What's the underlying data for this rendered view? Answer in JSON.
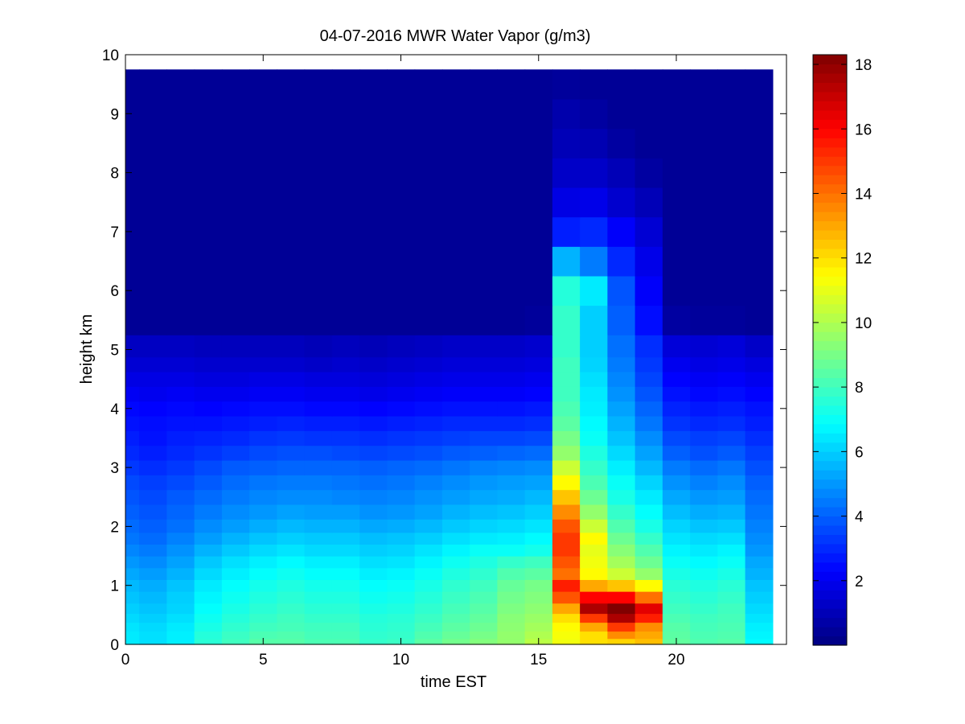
{
  "chart_data": {
    "type": "heatmap",
    "title": "04-07-2016 MWR Water Vapor (g/m3)",
    "xlabel": "time EST",
    "ylabel": "height km",
    "xlim": [
      0,
      24
    ],
    "ylim": [
      0,
      10
    ],
    "xticks": [
      0,
      5,
      10,
      15,
      20
    ],
    "yticks": [
      0,
      1,
      2,
      3,
      4,
      5,
      6,
      7,
      8,
      9,
      10
    ],
    "colorbar": {
      "colormap": "jet",
      "range": [
        0,
        18.3
      ],
      "ticks": [
        2,
        4,
        6,
        8,
        10,
        12,
        14,
        16,
        18
      ]
    },
    "x_edges": [
      0,
      1,
      2,
      3,
      4,
      5,
      6,
      7,
      8,
      9,
      10,
      11,
      12,
      13,
      14,
      15,
      16,
      17,
      18,
      19,
      20,
      21,
      22,
      23
    ],
    "heights_km": [
      0.05,
      0.15,
      0.3,
      0.45,
      0.6,
      0.8,
      1.0,
      1.2,
      1.4,
      1.6,
      1.8,
      2.0,
      2.25,
      2.5,
      2.75,
      3.0,
      3.25,
      3.5,
      3.75,
      4.0,
      4.25,
      4.5,
      4.75,
      5.0,
      5.5,
      6.0,
      6.5,
      7.0,
      7.5,
      8.0,
      8.5,
      9.0,
      9.5
    ],
    "y_top_km": 9.75,
    "values": [
      [
        6.5,
        6.3,
        6.6,
        7.6,
        8.0,
        8.4,
        8.4,
        8.2,
        8.2,
        7.8,
        7.9,
        8.5,
        8.9,
        9.2,
        9.5,
        10.2,
        11.2,
        12.0,
        12.2,
        12.6,
        8.6,
        8.3,
        8.4,
        6.8
      ],
      [
        6.5,
        6.3,
        6.6,
        7.5,
        7.9,
        8.2,
        8.3,
        8.1,
        8.1,
        7.7,
        7.8,
        8.3,
        8.7,
        9.0,
        9.5,
        10.0,
        11.3,
        12.0,
        13.5,
        13.0,
        8.5,
        8.2,
        8.3,
        6.7
      ],
      [
        6.4,
        6.2,
        6.5,
        7.3,
        7.7,
        8.0,
        8.1,
        8.0,
        8.0,
        7.6,
        7.7,
        8.1,
        8.5,
        8.8,
        9.4,
        9.8,
        11.5,
        13.0,
        15.0,
        13.5,
        8.4,
        8.1,
        8.2,
        6.6
      ],
      [
        6.2,
        6.0,
        6.3,
        7.1,
        7.5,
        7.8,
        8.0,
        7.8,
        7.8,
        7.5,
        7.6,
        7.9,
        8.3,
        8.6,
        9.3,
        9.6,
        12.0,
        15.0,
        17.5,
        15.5,
        8.2,
        8.0,
        8.1,
        6.4
      ],
      [
        6.0,
        5.8,
        6.1,
        6.9,
        7.3,
        7.6,
        7.8,
        7.6,
        7.6,
        7.3,
        7.4,
        7.7,
        8.1,
        8.4,
        9.1,
        9.4,
        13.0,
        17.5,
        18.3,
        16.5,
        8.0,
        7.8,
        8.0,
        6.2
      ],
      [
        5.8,
        5.6,
        6.0,
        6.7,
        7.1,
        7.4,
        7.6,
        7.4,
        7.4,
        7.1,
        7.2,
        7.5,
        7.9,
        8.2,
        8.9,
        9.2,
        14.5,
        16.0,
        16.0,
        14.0,
        7.8,
        7.6,
        7.8,
        6.0
      ],
      [
        5.6,
        5.4,
        5.8,
        6.5,
        6.9,
        7.2,
        7.4,
        7.2,
        7.2,
        6.9,
        7.0,
        7.3,
        7.7,
        8.0,
        8.7,
        9.0,
        15.5,
        13.0,
        12.5,
        11.5,
        7.6,
        7.4,
        7.6,
        5.8
      ],
      [
        5.3,
        5.1,
        5.5,
        6.2,
        6.6,
        6.9,
        7.1,
        6.9,
        6.9,
        6.6,
        6.7,
        7.0,
        7.4,
        7.7,
        8.3,
        8.5,
        14.0,
        11.5,
        10.5,
        9.5,
        7.3,
        7.1,
        7.3,
        5.5
      ],
      [
        5.0,
        4.8,
        5.2,
        5.9,
        6.3,
        6.6,
        6.8,
        6.6,
        6.6,
        6.3,
        6.4,
        6.7,
        7.1,
        7.4,
        7.8,
        8.0,
        14.5,
        11.2,
        9.8,
        8.8,
        7.0,
        6.8,
        7.0,
        5.3
      ],
      [
        4.7,
        4.5,
        4.9,
        5.5,
        5.9,
        6.2,
        6.4,
        6.2,
        6.2,
        6.0,
        6.1,
        6.4,
        6.7,
        7.0,
        7.0,
        7.2,
        15.0,
        11.0,
        9.3,
        8.3,
        6.7,
        6.5,
        6.7,
        5.0
      ],
      [
        4.4,
        4.2,
        4.6,
        5.1,
        5.5,
        5.8,
        6.0,
        5.9,
        5.9,
        5.7,
        5.8,
        6.0,
        6.3,
        6.5,
        6.6,
        6.8,
        15.0,
        11.5,
        8.8,
        7.8,
        6.4,
        6.2,
        6.3,
        4.8
      ],
      [
        4.2,
        4.0,
        4.3,
        4.8,
        5.1,
        5.4,
        5.6,
        5.5,
        5.5,
        5.3,
        5.4,
        5.6,
        5.9,
        6.1,
        6.2,
        6.4,
        14.5,
        10.5,
        8.3,
        7.3,
        6.1,
        5.8,
        5.9,
        4.6
      ],
      [
        4.0,
        3.8,
        4.1,
        4.5,
        4.8,
        5.0,
        5.2,
        5.1,
        5.1,
        4.9,
        5.0,
        5.2,
        5.5,
        5.7,
        5.8,
        6.0,
        13.5,
        9.5,
        7.8,
        6.9,
        5.7,
        5.4,
        5.5,
        4.4
      ],
      [
        3.8,
        3.6,
        3.9,
        4.2,
        4.5,
        4.7,
        4.8,
        4.8,
        4.7,
        4.6,
        4.7,
        4.9,
        5.1,
        5.3,
        5.4,
        5.6,
        12.5,
        8.8,
        7.3,
        6.5,
        5.3,
        5.0,
        5.1,
        4.2
      ],
      [
        3.6,
        3.4,
        3.6,
        3.9,
        4.2,
        4.4,
        4.5,
        4.5,
        4.4,
        4.3,
        4.4,
        4.6,
        4.8,
        5.0,
        5.1,
        5.2,
        11.5,
        8.2,
        7.0,
        6.1,
        4.9,
        4.6,
        4.8,
        4.0
      ],
      [
        3.3,
        3.1,
        3.3,
        3.6,
        3.9,
        4.0,
        4.1,
        4.1,
        4.1,
        4.0,
        4.1,
        4.2,
        4.4,
        4.6,
        4.7,
        4.8,
        10.5,
        7.8,
        6.6,
        5.6,
        4.5,
        4.2,
        4.4,
        3.7
      ],
      [
        3.0,
        2.8,
        3.0,
        3.2,
        3.4,
        3.6,
        3.7,
        3.7,
        3.6,
        3.5,
        3.6,
        3.7,
        3.9,
        4.0,
        4.1,
        4.2,
        9.5,
        7.4,
        6.2,
        5.2,
        4.0,
        3.7,
        3.9,
        3.4
      ],
      [
        2.8,
        2.6,
        2.8,
        2.9,
        3.0,
        3.2,
        3.3,
        3.2,
        3.2,
        3.1,
        3.2,
        3.3,
        3.4,
        3.5,
        3.5,
        3.6,
        9.0,
        7.0,
        5.8,
        4.8,
        3.6,
        3.4,
        3.5,
        3.1
      ],
      [
        2.6,
        2.5,
        2.6,
        2.6,
        2.7,
        2.8,
        2.9,
        2.8,
        2.8,
        2.7,
        2.8,
        2.9,
        3.0,
        3.0,
        3.0,
        3.1,
        8.5,
        6.8,
        5.5,
        4.4,
        3.2,
        3.0,
        3.1,
        2.8
      ],
      [
        2.4,
        2.3,
        2.4,
        2.3,
        2.4,
        2.5,
        2.5,
        2.4,
        2.4,
        2.3,
        2.4,
        2.5,
        2.6,
        2.6,
        2.6,
        2.7,
        8.2,
        6.6,
        5.2,
        4.1,
        2.9,
        2.7,
        2.8,
        2.6
      ],
      [
        2.1,
        2.0,
        2.1,
        2.0,
        2.0,
        2.1,
        2.1,
        2.0,
        2.0,
        1.9,
        2.0,
        2.1,
        2.2,
        2.2,
        2.2,
        2.3,
        8.0,
        6.5,
        4.9,
        3.8,
        2.6,
        2.4,
        2.5,
        2.3
      ],
      [
        1.8,
        1.8,
        1.8,
        1.7,
        1.7,
        1.8,
        1.8,
        1.7,
        1.7,
        1.6,
        1.7,
        1.8,
        1.9,
        1.9,
        1.9,
        2.0,
        8.0,
        6.3,
        4.7,
        3.5,
        2.3,
        2.1,
        2.2,
        2.0
      ],
      [
        1.5,
        1.5,
        1.5,
        1.4,
        1.4,
        1.4,
        1.4,
        1.3,
        1.4,
        1.3,
        1.4,
        1.5,
        1.6,
        1.6,
        1.6,
        1.7,
        8.0,
        6.1,
        4.5,
        3.3,
        2.0,
        1.8,
        1.9,
        1.7
      ],
      [
        1.2,
        1.2,
        1.2,
        1.1,
        1.1,
        1.1,
        1.1,
        1.0,
        1.1,
        1.0,
        1.1,
        1.2,
        1.3,
        1.3,
        1.3,
        1.4,
        7.8,
        6.0,
        4.3,
        3.1,
        1.6,
        1.5,
        1.6,
        1.3
      ],
      [
        0.4,
        0.4,
        0.4,
        0.4,
        0.4,
        0.4,
        0.4,
        0.4,
        0.4,
        0.4,
        0.4,
        0.4,
        0.4,
        0.4,
        0.4,
        0.5,
        7.8,
        6.0,
        4.0,
        2.5,
        0.6,
        0.5,
        0.5,
        0.4
      ],
      [
        0.4,
        0.4,
        0.4,
        0.4,
        0.4,
        0.4,
        0.4,
        0.4,
        0.4,
        0.4,
        0.4,
        0.4,
        0.4,
        0.4,
        0.4,
        0.4,
        7.5,
        6.5,
        3.8,
        2.2,
        0.4,
        0.4,
        0.4,
        0.4
      ],
      [
        0.4,
        0.4,
        0.4,
        0.4,
        0.4,
        0.4,
        0.4,
        0.4,
        0.4,
        0.4,
        0.4,
        0.4,
        0.4,
        0.4,
        0.4,
        0.4,
        5.5,
        4.5,
        3.0,
        1.9,
        0.4,
        0.4,
        0.4,
        0.4
      ],
      [
        0.4,
        0.4,
        0.4,
        0.4,
        0.4,
        0.4,
        0.4,
        0.4,
        0.4,
        0.4,
        0.4,
        0.4,
        0.4,
        0.4,
        0.4,
        0.4,
        2.8,
        3.0,
        2.2,
        1.5,
        0.4,
        0.4,
        0.4,
        0.4
      ],
      [
        0.4,
        0.4,
        0.4,
        0.4,
        0.4,
        0.4,
        0.4,
        0.4,
        0.4,
        0.4,
        0.4,
        0.4,
        0.4,
        0.4,
        0.4,
        0.4,
        1.8,
        1.9,
        1.4,
        1.0,
        0.4,
        0.4,
        0.4,
        0.4
      ],
      [
        0.4,
        0.4,
        0.4,
        0.4,
        0.4,
        0.4,
        0.4,
        0.4,
        0.4,
        0.4,
        0.4,
        0.4,
        0.4,
        0.4,
        0.4,
        0.4,
        1.3,
        1.3,
        1.0,
        0.6,
        0.4,
        0.4,
        0.4,
        0.4
      ],
      [
        0.4,
        0.4,
        0.4,
        0.4,
        0.4,
        0.4,
        0.4,
        0.4,
        0.4,
        0.4,
        0.4,
        0.4,
        0.4,
        0.4,
        0.4,
        0.4,
        1.0,
        0.9,
        0.6,
        0.4,
        0.4,
        0.4,
        0.4,
        0.4
      ],
      [
        0.4,
        0.4,
        0.4,
        0.4,
        0.4,
        0.4,
        0.4,
        0.4,
        0.4,
        0.4,
        0.4,
        0.4,
        0.4,
        0.4,
        0.4,
        0.4,
        0.8,
        0.6,
        0.4,
        0.4,
        0.4,
        0.4,
        0.4,
        0.4
      ],
      [
        0.4,
        0.4,
        0.4,
        0.4,
        0.4,
        0.4,
        0.4,
        0.4,
        0.4,
        0.4,
        0.4,
        0.4,
        0.4,
        0.4,
        0.4,
        0.4,
        0.5,
        0.4,
        0.4,
        0.4,
        0.4,
        0.4,
        0.4,
        0.4
      ]
    ]
  }
}
